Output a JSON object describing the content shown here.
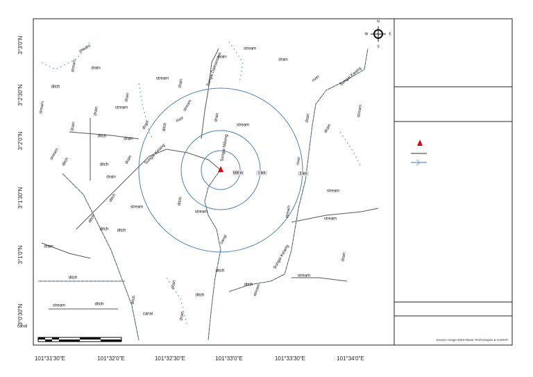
{
  "map": {
    "latitude_labels": [
      "3°3'0\"N",
      "3°2'30\"N",
      "3°2'0\"N",
      "3°1'30\"N",
      "3°1'0\"N",
      "3°0'30\"N"
    ],
    "longitude_labels": [
      "101°31'30\"E",
      "101°32'0\"E",
      "101°32'30\"E",
      "101°33'0\"E",
      "101°33'30\"E",
      "101°34'0\"E"
    ],
    "compass": [
      "N",
      "E",
      "S",
      "W"
    ],
    "ring_labels": [
      "500 m",
      "1 km",
      "2 km"
    ],
    "feature_labels": [
      "stream",
      "stream",
      "drain",
      "ditch",
      "stream",
      "drain",
      "stream",
      "drain",
      "drain",
      "ditch",
      "drain",
      "stream",
      "ditch",
      "drain",
      "ditch",
      "drain",
      "stream",
      "ditch",
      "stream",
      "river",
      "drain",
      "Sungai Damansara",
      "drain",
      "stream",
      "drain",
      "river",
      "Sungai Kwang",
      "stream",
      "drain",
      "drain",
      "Sungai Kelang",
      "Sungai Nibong",
      "drain",
      "stream",
      "river",
      "drain",
      "ditch",
      "stream",
      "ditch",
      "ditch",
      "ditch",
      "ditch",
      "stream",
      "stream",
      "stream",
      "stream",
      "canal",
      "Sungai Kelang",
      "drain",
      "ditch",
      "stream",
      "ditch",
      "canal",
      "canal",
      "drain",
      "stream",
      "ditch",
      "drain",
      "ditch",
      "ditch",
      "stream",
      "ditch",
      "drain"
    ],
    "source": "Source: Image 2023 Maxar Technologies & ArcMAP"
  }
}
